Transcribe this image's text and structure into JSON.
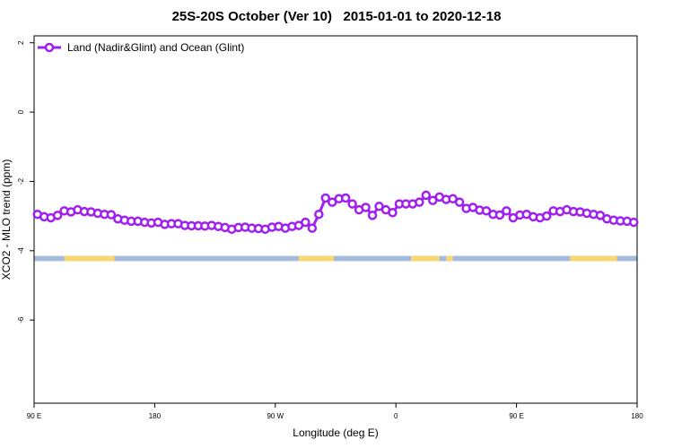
{
  "chart_data": {
    "type": "line",
    "title": "25S-20S October (Ver 10)   2015-01-01 to 2020-12-18",
    "xlabel": "Longitude (deg E)",
    "ylabel": "XCO2 - MLO trend (ppm)",
    "xlim": [
      90,
      450
    ],
    "ylim": [
      -8.4,
      2.2
    ],
    "xticks": [
      90,
      162,
      234,
      306,
      378,
      450
    ],
    "xtick_labels": [
      "90 E",
      "180",
      "90 W",
      "0",
      "90 E",
      "180"
    ],
    "yticks": [
      2,
      0,
      -2,
      -4,
      -6
    ],
    "ytick_labels": [
      "2",
      "0",
      "-2",
      "-4",
      "-6"
    ],
    "grid": false,
    "legend_position": "top-left",
    "series": [
      {
        "name": "Land (Nadir&Glint) and Ocean (Glint)",
        "color": "#a020f0",
        "x": [
          92,
          96,
          100,
          104,
          108,
          112,
          116,
          120,
          124,
          128,
          132,
          136,
          140,
          144,
          148,
          152,
          156,
          160,
          164,
          168,
          172,
          176,
          180,
          184,
          188,
          192,
          196,
          200,
          204,
          208,
          212,
          216,
          220,
          224,
          228,
          232,
          236,
          240,
          244,
          248,
          252,
          256,
          260,
          264,
          268,
          272,
          276,
          280,
          284,
          288,
          292,
          296,
          300,
          304,
          308,
          312,
          316,
          320,
          324,
          328,
          332,
          336,
          340,
          344,
          348,
          352,
          356,
          360,
          364,
          368,
          372,
          376,
          380,
          384,
          388,
          392,
          396,
          400,
          404,
          408,
          412,
          416,
          420,
          424,
          428,
          432,
          436,
          440,
          444,
          448
        ],
        "y": [
          -2.95,
          -3.02,
          -3.05,
          -2.98,
          -2.85,
          -2.88,
          -2.82,
          -2.87,
          -2.88,
          -2.92,
          -2.95,
          -2.96,
          -3.08,
          -3.12,
          -3.15,
          -3.15,
          -3.18,
          -3.2,
          -3.18,
          -3.24,
          -3.22,
          -3.22,
          -3.27,
          -3.28,
          -3.28,
          -3.29,
          -3.27,
          -3.3,
          -3.33,
          -3.38,
          -3.33,
          -3.32,
          -3.35,
          -3.36,
          -3.38,
          -3.32,
          -3.3,
          -3.35,
          -3.3,
          -3.27,
          -3.18,
          -3.35,
          -2.95,
          -2.48,
          -2.6,
          -2.5,
          -2.48,
          -2.65,
          -2.82,
          -2.75,
          -2.98,
          -2.72,
          -2.82,
          -2.9,
          -2.65,
          -2.65,
          -2.65,
          -2.6,
          -2.4,
          -2.55,
          -2.45,
          -2.52,
          -2.5,
          -2.6,
          -2.78,
          -2.75,
          -2.83,
          -2.85,
          -2.95,
          -2.97,
          -2.85,
          -3.05,
          -2.97,
          -2.95,
          -3.02,
          -3.05,
          -3.0,
          -2.85,
          -2.87,
          -2.82,
          -2.87,
          -2.88,
          -2.92,
          -2.95,
          -2.98,
          -3.08,
          -3.12,
          -3.14,
          -3.15,
          -3.18
        ]
      }
    ],
    "land_ocean_bar": {
      "y_range": [
        -4.3,
        -4.15
      ],
      "ocean_color": "#a4bbdb",
      "land_color": "#f9d871",
      "land_segments": [
        [
          108,
          138
        ],
        [
          248,
          269
        ],
        [
          315,
          332
        ],
        [
          336,
          340
        ],
        [
          410,
          438
        ]
      ]
    }
  }
}
